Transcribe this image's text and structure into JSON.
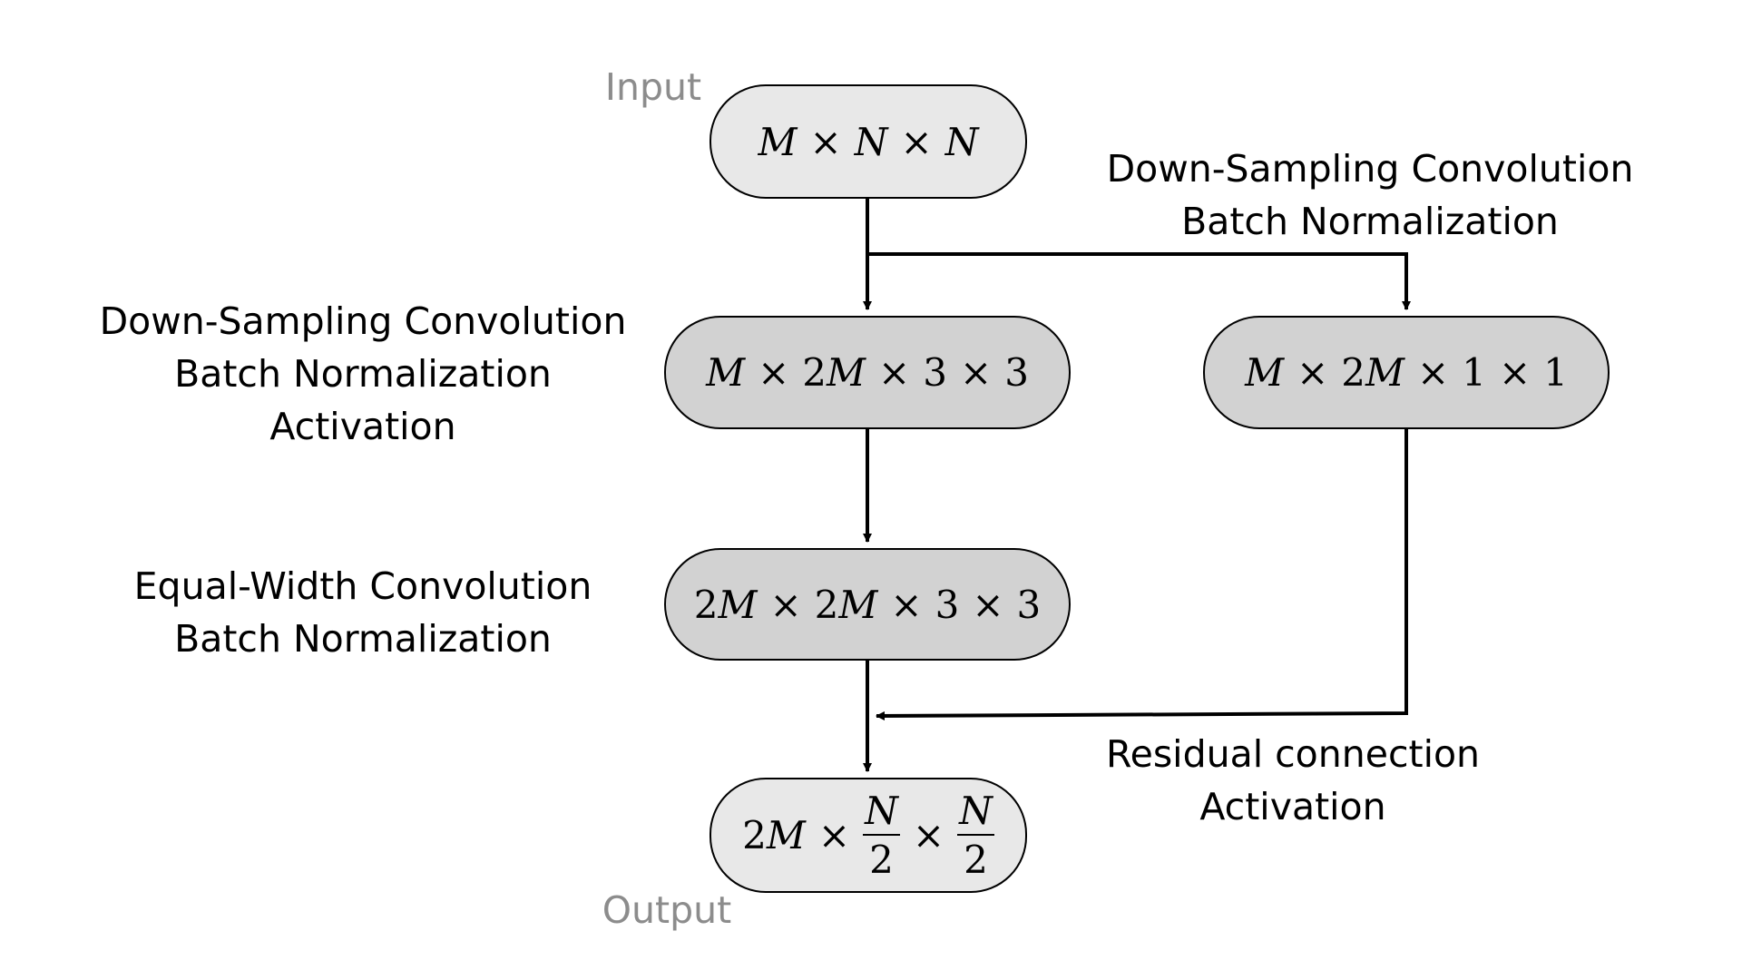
{
  "labels": {
    "input": "Input",
    "output": "Output",
    "shortcut": [
      "Down-Sampling Convolution",
      "Batch Normalization"
    ],
    "downsample": [
      "Down-Sampling Convolution",
      "Batch Normalization",
      "Activation"
    ],
    "equalwidth": [
      "Equal-Width Convolution",
      "Batch Normalization"
    ],
    "residual": [
      "Residual connection",
      "Activation"
    ]
  },
  "nodes": {
    "input": {
      "a": "M",
      "b": "N",
      "c": "N"
    },
    "conv1": {
      "a": "M",
      "b": "2",
      "bv": "M",
      "c": "3",
      "d": "3"
    },
    "shortcut": {
      "a": "M",
      "b": "2",
      "bv": "M",
      "c": "1",
      "d": "1"
    },
    "conv2": {
      "a": "2",
      "av": "M",
      "b": "2",
      "bv": "M",
      "c": "3",
      "d": "3"
    },
    "output": {
      "a": "2",
      "av": "M",
      "n1": "N",
      "d1": "2",
      "n2": "N",
      "d2": "2"
    }
  },
  "symbols": {
    "times": "×"
  }
}
